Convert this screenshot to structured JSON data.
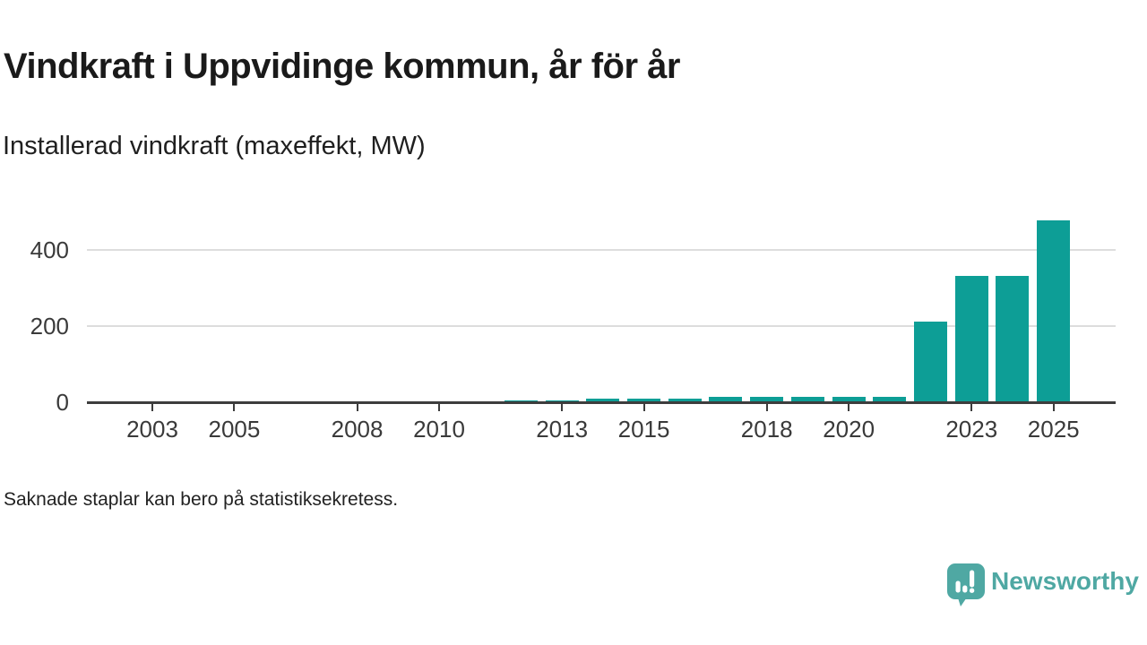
{
  "header": {
    "title": "Vindkraft i Uppvidinge kommun, år för år",
    "subtitle": "Installerad vindkraft (maxeffekt, MW)"
  },
  "footnote": {
    "text": "Saknade staplar kan bero på statistiksekretess."
  },
  "branding": {
    "wordmark": "Newsworthy",
    "logo_icon": "newsworthy-speech-bubble-bar-chart-icon",
    "color": "#4FA8A3"
  },
  "colors": {
    "bar": "#0D9E96",
    "axis": "#3D3D3D",
    "gridline": "#DDDDDD",
    "title_text": "#1A1A1A",
    "tick_text": "#3A3A3A"
  },
  "chart_data": {
    "type": "bar",
    "title": "Vindkraft i Uppvidinge kommun, år för år",
    "subtitle": "Installerad vindkraft (maxeffekt, MW)",
    "unit": "MW",
    "years": [
      2012,
      2013,
      2014,
      2015,
      2016,
      2017,
      2018,
      2019,
      2020,
      2021,
      2022,
      2023,
      2024,
      2025
    ],
    "values": [
      3,
      3,
      8,
      8,
      8,
      12,
      12,
      12,
      12,
      12,
      210,
      330,
      330,
      475
    ],
    "bar_color": "#0D9E96",
    "legend": "none",
    "note": "Saknade staplar kan bero på statistiksekretess.",
    "x_axis": {
      "tick_labels": [
        "2003",
        "2005",
        "2008",
        "2010",
        "2013",
        "2015",
        "2018",
        "2020",
        "2023",
        "2025"
      ],
      "range": [
        2001.4,
        2026.5
      ],
      "gridlines": false
    },
    "y_axis": {
      "ticks": [
        0,
        200,
        400
      ],
      "tick_labels": [
        "0",
        "200",
        "400"
      ],
      "range": [
        0,
        500
      ],
      "gridlines": true
    }
  }
}
